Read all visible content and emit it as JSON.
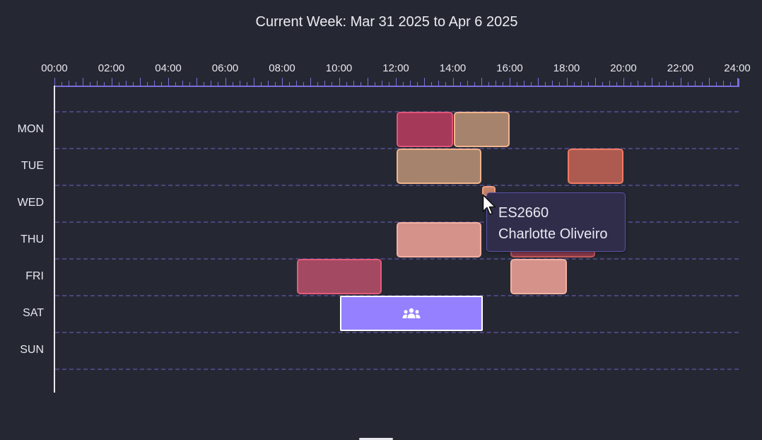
{
  "header": {
    "title": "Current Week: Mar 31 2025 to Apr 6 2025"
  },
  "time_axis": {
    "labels": [
      "00:00",
      "02:00",
      "04:00",
      "06:00",
      "08:00",
      "10:00",
      "12:00",
      "14:00",
      "16:00",
      "18:00",
      "20:00",
      "22:00",
      "24:00"
    ]
  },
  "days": [
    "MON",
    "TUE",
    "WED",
    "THU",
    "FRI",
    "SAT",
    "SUN"
  ],
  "colors": {
    "background": "#252833",
    "axis": "#7a6fd8",
    "grid": "#4b457e",
    "team_block": "#9580ff"
  },
  "shifts": [
    {
      "day": "MON",
      "start_hour": 12.0,
      "end_hour": 14.0,
      "fill": "#a5395a",
      "border": "#e05678"
    },
    {
      "day": "MON",
      "start_hour": 14.0,
      "end_hour": 16.0,
      "fill": "#a6836c",
      "border": "#f0b48e"
    },
    {
      "day": "TUE",
      "start_hour": 12.0,
      "end_hour": 15.0,
      "fill": "#a6836c",
      "border": "#f0b48e"
    },
    {
      "day": "TUE",
      "start_hour": 18.0,
      "end_hour": 20.0,
      "fill": "#ad5b51",
      "border": "#f27a63"
    },
    {
      "day": "WED",
      "start_hour": 15.0,
      "end_hour": 15.5,
      "fill": "#c4826a",
      "border": "#f0a080"
    },
    {
      "day": "THU",
      "start_hour": 12.0,
      "end_hour": 15.0,
      "fill": "#d4928a",
      "border": "#f3b0a2"
    },
    {
      "day": "THU",
      "start_hour": 16.0,
      "end_hour": 19.0,
      "fill": "#8c3a4c",
      "border": "#c25a5a"
    },
    {
      "day": "FRI",
      "start_hour": 8.5,
      "end_hour": 11.5,
      "fill": "#a34a62",
      "border": "#e65a7a"
    },
    {
      "day": "FRI",
      "start_hour": 16.0,
      "end_hour": 18.0,
      "fill": "#d4928a",
      "border": "#f3b0a2"
    }
  ],
  "team_event": {
    "day": "SAT",
    "start_hour": 10.0,
    "end_hour": 15.0,
    "icon": "users-icon"
  },
  "tooltip": {
    "code": "ES2660",
    "name": "Charlotte Oliveiro"
  }
}
